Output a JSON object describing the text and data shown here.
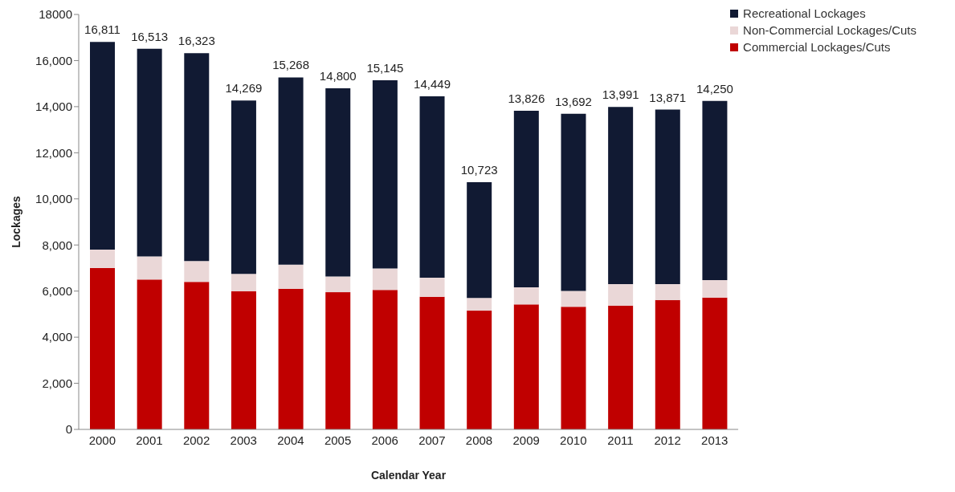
{
  "chart_data": {
    "type": "bar",
    "stacked": true,
    "xlabel": "Calendar Year",
    "ylabel": "Lockages",
    "categories": [
      "2000",
      "2001",
      "2002",
      "2003",
      "2004",
      "2005",
      "2006",
      "2007",
      "2008",
      "2009",
      "2010",
      "2011",
      "2012",
      "2013"
    ],
    "series": [
      {
        "name": "Commercial Lockages/Cuts",
        "color": "#c00000",
        "values": [
          7000,
          6500,
          6400,
          6000,
          6100,
          5950,
          6050,
          5750,
          5150,
          5420,
          5320,
          5370,
          5610,
          5720
        ]
      },
      {
        "name": "Non-Commercial Lockages/Cuts",
        "color": "#ead7d7",
        "values": [
          800,
          1000,
          900,
          750,
          1050,
          680,
          930,
          830,
          550,
          740,
          690,
          930,
          690,
          760
        ]
      },
      {
        "name": "Recreational Lockages",
        "color": "#111a33",
        "values": [
          9011,
          9013,
          9023,
          7519,
          8118,
          8170,
          8165,
          7869,
          5023,
          7666,
          7682,
          7691,
          7571,
          7770
        ]
      }
    ],
    "totals": [
      "16,811",
      "16,513",
      "16,323",
      "14,269",
      "15,268",
      "14,800",
      "15,145",
      "14,449",
      "10,723",
      "13,826",
      "13,692",
      "13,991",
      "13,871",
      "14,250"
    ],
    "ylim": [
      0,
      18000
    ],
    "yticks": [
      {
        "value": 0,
        "label": "0"
      },
      {
        "value": 2000,
        "label": "2,000"
      },
      {
        "value": 4000,
        "label": "4,000"
      },
      {
        "value": 6000,
        "label": "6,000"
      },
      {
        "value": 8000,
        "label": "8,000"
      },
      {
        "value": 10000,
        "label": "10,000"
      },
      {
        "value": 12000,
        "label": "12,000"
      },
      {
        "value": 14000,
        "label": "14,000"
      },
      {
        "value": 16000,
        "label": "16,000"
      },
      {
        "value": 18000,
        "label": "18000"
      }
    ],
    "grid": false,
    "legend": "top right"
  }
}
